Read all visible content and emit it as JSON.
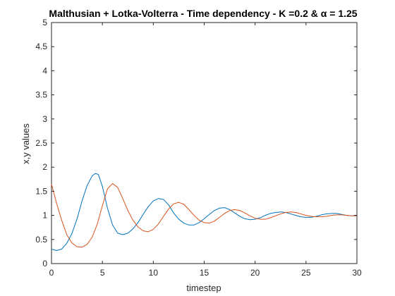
{
  "chart_data": {
    "type": "line",
    "title": "Malthusian + Lotka-Volterra - Time dependency - K =0.2 & α = 1.25",
    "xlabel": "timestep",
    "ylabel": "x,y values",
    "xlim": [
      0,
      30
    ],
    "ylim": [
      0,
      5
    ],
    "xticks": [
      0,
      5,
      10,
      15,
      20,
      25,
      30
    ],
    "xtick_labels": [
      "0",
      "5",
      "10",
      "15",
      "20",
      "25",
      "30"
    ],
    "yticks": [
      0,
      0.5,
      1,
      1.5,
      2,
      2.5,
      3,
      3.5,
      4,
      4.5,
      5
    ],
    "ytick_labels": [
      "0",
      "0.5",
      "1",
      "1.5",
      "2",
      "2.5",
      "3",
      "3.5",
      "4",
      "4.5",
      "5"
    ],
    "grid": false,
    "series": [
      {
        "color": "#0072BD",
        "x": [
          0,
          0.5,
          1,
          1.5,
          2,
          2.5,
          3,
          3.5,
          4,
          4.3,
          4.6,
          5,
          5.5,
          6,
          6.5,
          7,
          7.5,
          8,
          8.5,
          9,
          9.5,
          10,
          10.5,
          11,
          11.5,
          12,
          12.5,
          13,
          13.5,
          14,
          14.5,
          15,
          15.5,
          16,
          16.5,
          17,
          17.5,
          18,
          18.5,
          19,
          19.5,
          20,
          20.5,
          21,
          21.5,
          22,
          22.5,
          23,
          23.5,
          24,
          24.5,
          25,
          25.5,
          26,
          26.5,
          27,
          27.5,
          28,
          28.5,
          29,
          29.5,
          30
        ],
        "values": [
          0.3,
          0.27,
          0.3,
          0.42,
          0.62,
          0.92,
          1.3,
          1.62,
          1.82,
          1.87,
          1.85,
          1.6,
          1.15,
          0.8,
          0.63,
          0.6,
          0.63,
          0.72,
          0.85,
          1.02,
          1.18,
          1.3,
          1.35,
          1.33,
          1.22,
          1.05,
          0.92,
          0.84,
          0.8,
          0.8,
          0.85,
          0.93,
          1.02,
          1.1,
          1.15,
          1.16,
          1.12,
          1.05,
          0.98,
          0.93,
          0.91,
          0.92,
          0.95,
          1.0,
          1.04,
          1.06,
          1.07,
          1.06,
          1.03,
          1.0,
          0.97,
          0.96,
          0.96,
          0.98,
          1.01,
          1.03,
          1.04,
          1.04,
          1.02,
          1.0,
          0.99,
          1.0
        ]
      },
      {
        "color": "#D95319",
        "x": [
          0,
          0.5,
          1,
          1.5,
          2,
          2.5,
          3,
          3.5,
          4,
          4.5,
          5,
          5.5,
          6,
          6.5,
          7,
          7.5,
          8,
          8.5,
          9,
          9.5,
          10,
          10.5,
          11,
          11.5,
          12,
          12.5,
          13,
          13.5,
          14,
          14.5,
          15,
          15.5,
          16,
          16.5,
          17,
          17.5,
          18,
          18.5,
          19,
          19.5,
          20,
          20.5,
          21,
          21.5,
          22,
          22.5,
          23,
          23.5,
          24,
          24.5,
          25,
          25.5,
          26,
          26.5,
          27,
          27.5,
          28,
          28.5,
          29,
          29.5,
          30
        ],
        "values": [
          1.65,
          1.25,
          0.9,
          0.6,
          0.43,
          0.35,
          0.34,
          0.4,
          0.55,
          0.82,
          1.2,
          1.55,
          1.66,
          1.58,
          1.35,
          1.1,
          0.9,
          0.76,
          0.68,
          0.66,
          0.71,
          0.82,
          0.98,
          1.13,
          1.24,
          1.27,
          1.23,
          1.12,
          1.0,
          0.9,
          0.85,
          0.84,
          0.88,
          0.96,
          1.04,
          1.1,
          1.12,
          1.1,
          1.05,
          0.99,
          0.94,
          0.92,
          0.92,
          0.95,
          0.99,
          1.03,
          1.06,
          1.07,
          1.06,
          1.03,
          1.0,
          0.98,
          0.97,
          0.97,
          0.98,
          1.0,
          1.01,
          1.01,
          1.0,
          0.99,
          0.99
        ]
      }
    ]
  },
  "colors": {
    "axis": "#262626",
    "background": "#ffffff"
  }
}
